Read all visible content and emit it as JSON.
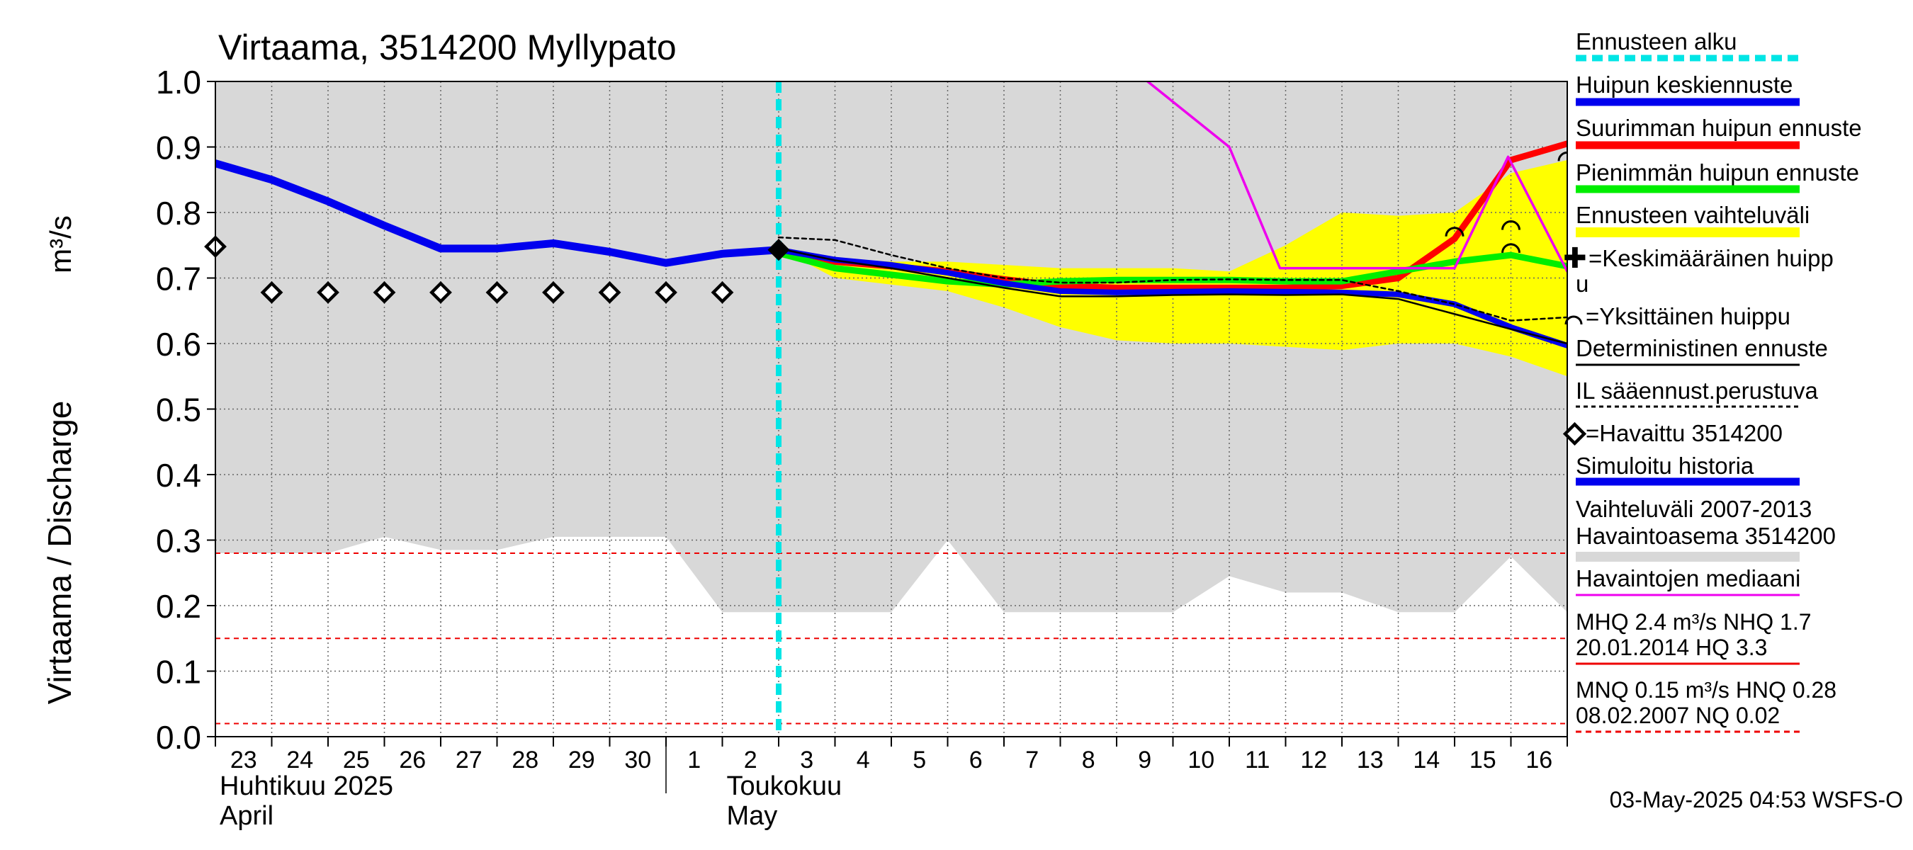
{
  "chart_data": {
    "type": "line",
    "title": "Virtaama, 3514200 Myllypato",
    "ylabel": "Virtaama / Discharge",
    "yunit": "m³/s",
    "ylim": [
      0.0,
      1.0
    ],
    "yticks": [
      "0.0",
      "0.1",
      "0.2",
      "0.3",
      "0.4",
      "0.5",
      "0.6",
      "0.7",
      "0.8",
      "0.9",
      "1.0"
    ],
    "x_day_labels": [
      "23",
      "24",
      "25",
      "26",
      "27",
      "28",
      "29",
      "30",
      "1",
      "2",
      "3",
      "4",
      "5",
      "6",
      "7",
      "8",
      "9",
      "10",
      "11",
      "12",
      "13",
      "14",
      "15",
      "16"
    ],
    "month_labels": [
      {
        "fi": "Huhtikuu  2025",
        "en": "April"
      },
      {
        "fi": "Toukokuu",
        "en": "May"
      }
    ],
    "x_range_days": [
      0,
      24
    ],
    "forecast_start_day": 10.0,
    "history_band": {
      "label": "Vaihteluväli 2007-2013",
      "label2": " Havaintoasema 3514200",
      "x": [
        0,
        1,
        2,
        3,
        4,
        5,
        6,
        7,
        8,
        9,
        10,
        11,
        12,
        13,
        14,
        15,
        16,
        17,
        18,
        19,
        20,
        21,
        22,
        23,
        24
      ],
      "upper": [
        1.0,
        1.0,
        1.0,
        1.0,
        1.0,
        1.0,
        1.0,
        1.0,
        1.0,
        1.0,
        1.0,
        1.0,
        1.0,
        1.0,
        1.0,
        1.0,
        1.0,
        1.0,
        1.0,
        1.0,
        1.0,
        1.0,
        1.0,
        1.0,
        1.0
      ],
      "lower": [
        0.28,
        0.28,
        0.28,
        0.305,
        0.285,
        0.285,
        0.305,
        0.305,
        0.305,
        0.19,
        0.19,
        0.19,
        0.19,
        0.3,
        0.19,
        0.19,
        0.19,
        0.19,
        0.245,
        0.22,
        0.22,
        0.19,
        0.19,
        0.275,
        0.19
      ]
    },
    "forecast_band": {
      "label": "Ennusteen vaihteluväli",
      "x": [
        10,
        11,
        12,
        13,
        14,
        15,
        16,
        17,
        18,
        19,
        20,
        21,
        22,
        23,
        24
      ],
      "upper": [
        0.745,
        0.73,
        0.725,
        0.725,
        0.72,
        0.715,
        0.715,
        0.715,
        0.71,
        0.75,
        0.8,
        0.795,
        0.8,
        0.86,
        0.88
      ],
      "lower": [
        0.745,
        0.7,
        0.69,
        0.68,
        0.655,
        0.625,
        0.605,
        0.6,
        0.6,
        0.595,
        0.59,
        0.6,
        0.6,
        0.58,
        0.55
      ]
    },
    "series": [
      {
        "name": "Simuloitu historia",
        "color": "#0000ee",
        "x": [
          0,
          1,
          2,
          3,
          4,
          5,
          6,
          7,
          8,
          9,
          10
        ],
        "values": [
          0.875,
          0.85,
          0.817,
          0.78,
          0.745,
          0.745,
          0.753,
          0.74,
          0.723,
          0.737,
          0.743
        ]
      },
      {
        "name": "Suurimman huipun ennuste",
        "color": "#ff0000",
        "x": [
          10,
          11,
          12,
          13,
          14,
          15,
          16,
          17,
          18,
          19,
          20,
          21,
          22,
          23,
          24
        ],
        "values": [
          0.743,
          0.725,
          0.718,
          0.71,
          0.698,
          0.688,
          0.685,
          0.685,
          0.685,
          0.685,
          0.688,
          0.7,
          0.76,
          0.88,
          0.905
        ]
      },
      {
        "name": "Pienimmän huipun ennuste",
        "color": "#00ee00",
        "x": [
          10,
          11,
          12,
          13,
          14,
          15,
          16,
          17,
          18,
          19,
          20,
          21,
          22,
          23,
          24
        ],
        "values": [
          0.738,
          0.715,
          0.705,
          0.695,
          0.69,
          0.695,
          0.697,
          0.697,
          0.697,
          0.695,
          0.695,
          0.71,
          0.725,
          0.735,
          0.718
        ]
      },
      {
        "name": "Huipun keskiennuste",
        "color": "#0000ee",
        "x": [
          10,
          11,
          12,
          13,
          14,
          15,
          16,
          17,
          18,
          19,
          20,
          21,
          22,
          23,
          24
        ],
        "values": [
          0.743,
          0.728,
          0.72,
          0.708,
          0.692,
          0.68,
          0.678,
          0.679,
          0.68,
          0.679,
          0.678,
          0.675,
          0.66,
          0.625,
          0.597
        ]
      },
      {
        "name": "Deterministinen ennuste",
        "color": "#000000",
        "x": [
          10,
          11,
          12,
          13,
          14,
          15,
          16,
          17,
          18,
          19,
          20,
          21,
          22,
          23,
          24
        ],
        "values": [
          0.745,
          0.727,
          0.715,
          0.7,
          0.685,
          0.672,
          0.672,
          0.674,
          0.675,
          0.674,
          0.675,
          0.668,
          0.645,
          0.622,
          0.6
        ]
      },
      {
        "name": "IL sääennust.perustuva",
        "color": "#000000",
        "dashed": true,
        "x": [
          10,
          11,
          12,
          13,
          14,
          15,
          16,
          17,
          18,
          19,
          20,
          21,
          22,
          23,
          24
        ],
        "values": [
          0.762,
          0.758,
          0.735,
          0.715,
          0.7,
          0.693,
          0.693,
          0.697,
          0.698,
          0.697,
          0.697,
          0.68,
          0.66,
          0.635,
          0.64
        ]
      },
      {
        "name": "Havaintojen mediaani",
        "color": "#ee00ee",
        "x": [
          16.55,
          18.0,
          18.9,
          20.0,
          21.0,
          22.0,
          22.95,
          24.0
        ],
        "values": [
          1.0,
          0.9,
          0.715,
          0.715,
          0.715,
          0.715,
          0.885,
          0.71
        ]
      }
    ],
    "observed": {
      "label": "=Havaittu 3514200",
      "x": [
        0,
        1,
        2,
        3,
        4,
        5,
        6,
        7,
        8,
        9
      ],
      "values": [
        0.748,
        0.678,
        0.678,
        0.678,
        0.678,
        0.678,
        0.678,
        0.678,
        0.678,
        0.678
      ]
    },
    "single_peaks": {
      "x": [
        22,
        23,
        23,
        24
      ],
      "values": [
        0.77,
        0.78,
        0.745,
        0.885
      ]
    },
    "reference_lines": [
      {
        "name": "HNQ",
        "value": 0.28,
        "color": "#ee0000"
      },
      {
        "name": "MNQ",
        "value": 0.15,
        "color": "#ee0000"
      },
      {
        "name": "NQ",
        "value": 0.02,
        "color": "#ee0000"
      }
    ],
    "legend": {
      "ennusteen_alku": "Ennusteen alku",
      "huipun_keskiennuste": "Huipun keskiennuste",
      "suurimman": "Suurimman huipun ennuste",
      "pienimman": "Pienimmän huipun ennuste",
      "vaihteluvali": "Ennusteen vaihteluväli",
      "keskimaarainen_1": "=Keskimääräinen huipp",
      "keskimaarainen_2": "u",
      "yksittainen": "=Yksittäinen huippu",
      "deterministinen": "Deterministinen ennuste",
      "il": "IL sääennust.perustuva",
      "havaittu": "=Havaittu 3514200",
      "simuloitu": "Simuloitu historia",
      "vaihteluvali_hist": "Vaihteluväli 2007-2013",
      "havaintoasema": " Havaintoasema 3514200",
      "mediaani": "Havaintojen mediaani",
      "mhq_line1": "MHQ  2.4 m³/s NHQ  1.7",
      "mhq_line2": "20.01.2014 HQ  3.3",
      "mnq_line1": "MNQ 0.15 m³/s HNQ 0.28",
      "mnq_line2": "08.02.2007 NQ 0.02"
    },
    "footer": "03-May-2025 04:53 WSFS-O",
    "colors": {
      "band_gray": "#d8d8d8",
      "forecast_band": "#ffff00",
      "forecast_start": "#00e5e5",
      "grid": "#666666"
    }
  }
}
